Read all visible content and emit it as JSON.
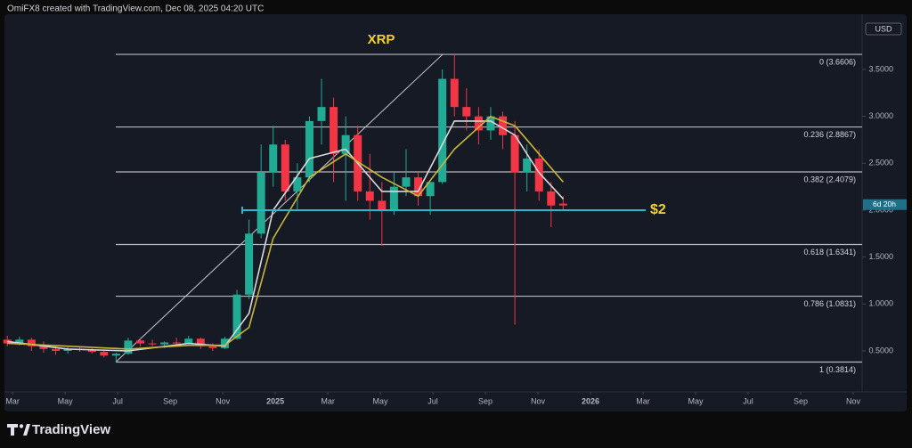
{
  "header": "OmiFX8 created with TradingView.com, Dec 08, 2025 04:20 UTC",
  "brand": "TradingView",
  "chart_data": {
    "type": "candlestick",
    "title": "XRP",
    "currency": "USD",
    "countdown": "6d 20h",
    "up_color": "#22ab94",
    "down_color": "#f23645",
    "xlim": [
      1.69,
      34.34
    ],
    "ylim": [
      0.063,
      4.098
    ],
    "xticks": [
      {
        "value": 2,
        "label": "Mar"
      },
      {
        "value": 4,
        "label": "May"
      },
      {
        "value": 6,
        "label": "Jul"
      },
      {
        "value": 8,
        "label": "Sep"
      },
      {
        "value": 10,
        "label": "Nov"
      },
      {
        "value": 12,
        "label": "2025"
      },
      {
        "value": 14,
        "label": "Mar"
      },
      {
        "value": 16,
        "label": "May"
      },
      {
        "value": 18,
        "label": "Jul"
      },
      {
        "value": 20,
        "label": "Sep"
      },
      {
        "value": 22,
        "label": "Nov"
      },
      {
        "value": 24,
        "label": "2026"
      },
      {
        "value": 26,
        "label": "Mar"
      },
      {
        "value": 28,
        "label": "May"
      },
      {
        "value": 30,
        "label": "Jul"
      },
      {
        "value": 32,
        "label": "Sep"
      },
      {
        "value": 34,
        "label": "Nov"
      }
    ],
    "yticks": [
      {
        "value": 0.5,
        "label": "0.5000"
      },
      {
        "value": 1,
        "label": "1.0000"
      },
      {
        "value": 1.5,
        "label": "1.5000"
      },
      {
        "value": 2,
        "label": "2.0000"
      },
      {
        "value": 2.5,
        "label": "2.5000"
      },
      {
        "value": 3,
        "label": "3.0000"
      },
      {
        "value": 3.5,
        "label": "3.5000"
      }
    ],
    "x": [
      1.8,
      2.26,
      2.72,
      3.18,
      3.64,
      4.1,
      4.56,
      5.02,
      5.48,
      5.94,
      6.4,
      6.86,
      7.32,
      7.78,
      8.24,
      8.7,
      9.16,
      9.62,
      10.08,
      10.54,
      11.0,
      11.46,
      11.92,
      12.38,
      12.84,
      13.3,
      13.76,
      14.22,
      14.68,
      15.14,
      15.6,
      16.06,
      16.52,
      16.98,
      17.44,
      17.9,
      18.36,
      18.82,
      19.28,
      19.74,
      20.2,
      20.66,
      21.12,
      21.58,
      22.04,
      22.5,
      22.96
    ],
    "open": [
      0.62,
      0.58,
      0.62,
      0.55,
      0.52,
      0.5,
      0.52,
      0.51,
      0.49,
      0.45,
      0.47,
      0.61,
      0.58,
      0.57,
      0.59,
      0.58,
      0.63,
      0.55,
      0.53,
      0.63,
      1.1,
      1.75,
      2.4,
      2.7,
      2.2,
      2.35,
      2.95,
      3.1,
      2.6,
      2.8,
      2.2,
      2.1,
      2.0,
      2.25,
      2.35,
      2.15,
      2.3,
      3.4,
      3.1,
      3.0,
      2.85,
      3.0,
      2.8,
      2.4,
      2.55,
      2.2,
      2.07
    ],
    "high": [
      0.66,
      0.65,
      0.64,
      0.6,
      0.56,
      0.54,
      0.55,
      0.53,
      0.5,
      0.48,
      0.64,
      0.64,
      0.62,
      0.6,
      0.64,
      0.66,
      0.64,
      0.58,
      0.65,
      1.15,
      1.9,
      2.7,
      2.9,
      2.75,
      2.5,
      3.0,
      3.4,
      3.2,
      3.0,
      2.9,
      2.6,
      2.3,
      2.4,
      2.65,
      2.4,
      2.3,
      3.5,
      3.66,
      3.3,
      3.1,
      3.1,
      3.05,
      2.95,
      2.7,
      2.65,
      2.3,
      2.15
    ],
    "low": [
      0.55,
      0.56,
      0.5,
      0.48,
      0.46,
      0.47,
      0.49,
      0.47,
      0.43,
      0.38,
      0.46,
      0.55,
      0.55,
      0.53,
      0.56,
      0.57,
      0.52,
      0.5,
      0.52,
      0.62,
      1.05,
      1.7,
      2.25,
      2.1,
      2.0,
      2.3,
      2.7,
      2.3,
      2.1,
      2.1,
      1.9,
      1.62,
      1.95,
      2.15,
      2.05,
      1.95,
      2.28,
      3.0,
      2.85,
      2.7,
      2.75,
      2.65,
      0.78,
      2.2,
      2.1,
      1.82,
      2.0
    ],
    "close": [
      0.58,
      0.62,
      0.55,
      0.52,
      0.5,
      0.52,
      0.51,
      0.49,
      0.45,
      0.47,
      0.61,
      0.58,
      0.57,
      0.59,
      0.58,
      0.63,
      0.55,
      0.53,
      0.63,
      1.1,
      1.75,
      2.4,
      2.7,
      2.2,
      2.35,
      2.95,
      3.1,
      2.6,
      2.8,
      2.2,
      2.1,
      2.0,
      2.25,
      2.35,
      2.15,
      2.3,
      3.4,
      3.1,
      3.0,
      2.85,
      3.0,
      2.8,
      2.4,
      2.55,
      2.2,
      2.05,
      2.05
    ],
    "lines": [
      {
        "color": "#d8d8d8",
        "x": [
          1.8,
          4.1,
          6.4,
          8.7,
          10.08,
          11.0,
          11.92,
          13.3,
          14.68,
          16.06,
          17.44,
          18.82,
          20.2,
          21.12,
          22.04,
          22.96
        ],
        "values": [
          0.6,
          0.52,
          0.5,
          0.58,
          0.55,
          0.9,
          2.0,
          2.55,
          2.65,
          2.2,
          2.2,
          2.95,
          2.95,
          2.8,
          2.4,
          2.12
        ]
      },
      {
        "color": "#c9b43a",
        "x": [
          1.8,
          4.1,
          6.4,
          8.7,
          10.08,
          11.0,
          11.92,
          13.3,
          14.68,
          16.06,
          17.44,
          18.82,
          20.2,
          21.12,
          22.04,
          22.96
        ],
        "values": [
          0.58,
          0.55,
          0.52,
          0.56,
          0.56,
          0.75,
          1.7,
          2.35,
          2.6,
          2.35,
          2.15,
          2.65,
          3.0,
          2.9,
          2.6,
          2.3
        ]
      }
    ],
    "levels": [
      {
        "value": 3.6606,
        "label": "0 (3.6606)"
      },
      {
        "value": 2.8867,
        "label": "0.236 (2.8867)"
      },
      {
        "value": 2.4079,
        "label": "0.382 (2.4079)"
      },
      {
        "value": 1.6341,
        "label": "0.618 (1.6341)"
      },
      {
        "value": 1.0831,
        "label": "0.786 (1.0831)"
      },
      {
        "value": 0.3814,
        "label": "1 (0.3814)"
      }
    ],
    "horizontal_line": {
      "value": 2,
      "label": "$2",
      "color": "#2bb8c9",
      "label_color": "#f2d12f"
    }
  }
}
